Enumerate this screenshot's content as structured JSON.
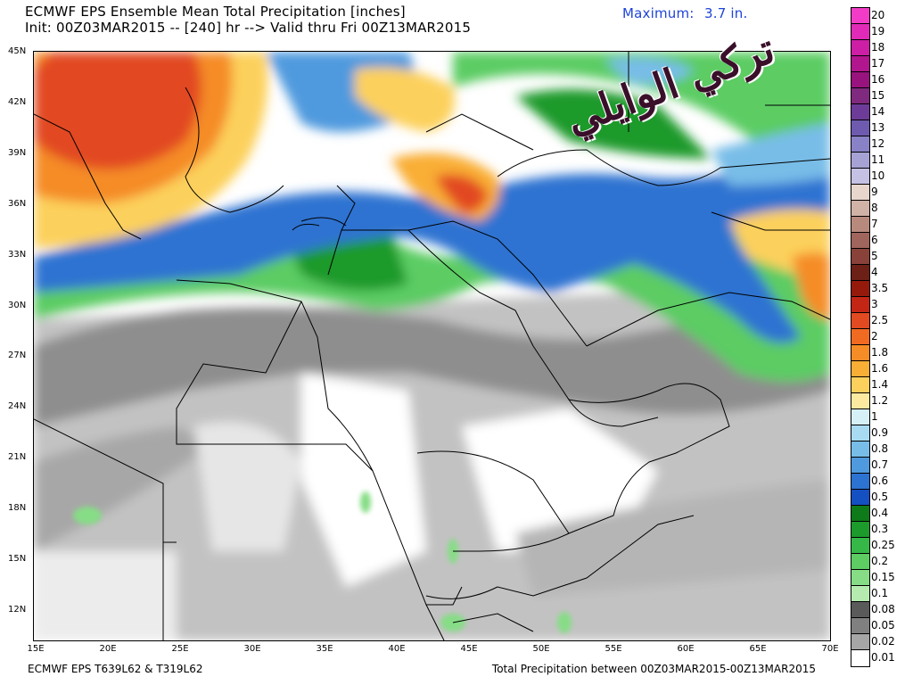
{
  "header": {
    "title": "ECMWF EPS Ensemble Mean Total Precipitation [inches]",
    "init_line": "Init: 00Z03MAR2015 -- [240] hr --> Valid thru Fri 00Z13MAR2015",
    "maximum_label": "Maximum:",
    "maximum_value": "3.7 in."
  },
  "footer": {
    "model": "ECMWF EPS T639L62 & T319L62",
    "period": "Total Precipitation between 00Z03MAR2015-00Z13MAR2015"
  },
  "axes": {
    "lat_labels": [
      "45N",
      "42N",
      "39N",
      "36N",
      "33N",
      "30N",
      "27N",
      "24N",
      "21N",
      "18N",
      "15N",
      "12N"
    ],
    "lon_labels": [
      "15E",
      "20E",
      "25E",
      "30E",
      "35E",
      "40E",
      "45E",
      "50E",
      "55E",
      "60E",
      "65E",
      "70E"
    ]
  },
  "legend": {
    "labels": [
      "20",
      "19",
      "18",
      "17",
      "16",
      "15",
      "14",
      "13",
      "12",
      "11",
      "10",
      "9",
      "8",
      "7",
      "6",
      "5",
      "4",
      "3.5",
      "3",
      "2.5",
      "2",
      "1.8",
      "1.6",
      "1.4",
      "1.2",
      "1",
      "0.9",
      "0.8",
      "0.7",
      "0.6",
      "0.5",
      "0.4",
      "0.3",
      "0.25",
      "0.2",
      "0.15",
      "0.1",
      "0.08",
      "0.05",
      "0.02",
      "0.01"
    ],
    "colors": [
      "#f23cc7",
      "#e22ab8",
      "#cc1fa6",
      "#b2168f",
      "#99137e",
      "#7f2a7f",
      "#6d3c98",
      "#6e5bb0",
      "#8a82c6",
      "#a7a2d4",
      "#c5c1e4",
      "#e8d5cc",
      "#d1b2a6",
      "#b88a7e",
      "#a0655c",
      "#88423a",
      "#6d2015",
      "#951a0c",
      "#c42616",
      "#e24a22",
      "#f06a22",
      "#f58c26",
      "#f9ae35",
      "#fcd05c",
      "#fbeaa0",
      "#d6f0f8",
      "#a8dbf2",
      "#78bde8",
      "#4f9ade",
      "#2d73d1",
      "#1550c2",
      "#0e7a1a",
      "#1d9a2c",
      "#35b848",
      "#5ccc63",
      "#86dd86",
      "#b6ebb0",
      "#5a5a5a",
      "#808080",
      "#a6a6a6",
      "#ffffff"
    ]
  },
  "watermark": {
    "text": "تركي الوايلي"
  }
}
